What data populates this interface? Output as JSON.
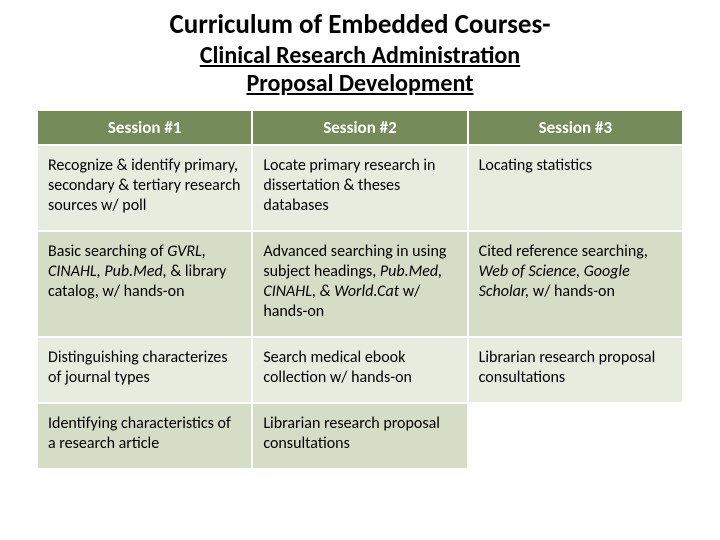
{
  "title": {
    "main": "Curriculum of Embedded Courses-",
    "sub1": "Clinical Research Administration",
    "sub2": "Proposal Development"
  },
  "table": {
    "headers": [
      "Session #1",
      "Session #2",
      "Session #3"
    ],
    "header_bg": "#758c5a",
    "header_fg": "#ffffff",
    "row_bg_odd": "#e8ecdf",
    "row_bg_even": "#d6ddc6",
    "rows": [
      {
        "c1": "Recognize & identify primary, secondary & tertiary research sources w/ poll",
        "c2": "Locate primary research in dissertation & theses databases",
        "c3": "Locating statistics"
      },
      {
        "c1_pre": "Basic searching of ",
        "c1_ital": "GVRL, CINAHL, Pub.Med,",
        "c1_post": " & library catalog, w/ hands-on",
        "c2_pre": "Advanced searching in using subject headings, ",
        "c2_ital": "Pub.Med, CINAHL, & World.Cat",
        "c2_post": " w/ hands-on",
        "c3_pre": "Cited reference searching, ",
        "c3_ital": "Web of Science, Google Scholar,",
        "c3_post": " w/ hands-on"
      },
      {
        "c1": "Distinguishing characterizes of journal types",
        "c2": "Search medical ebook collection w/ hands-on",
        "c3": "Librarian research proposal consultations"
      },
      {
        "c1": "Identifying characteristics of a research article",
        "c2": "Librarian research proposal consultations",
        "c3": ""
      }
    ]
  }
}
